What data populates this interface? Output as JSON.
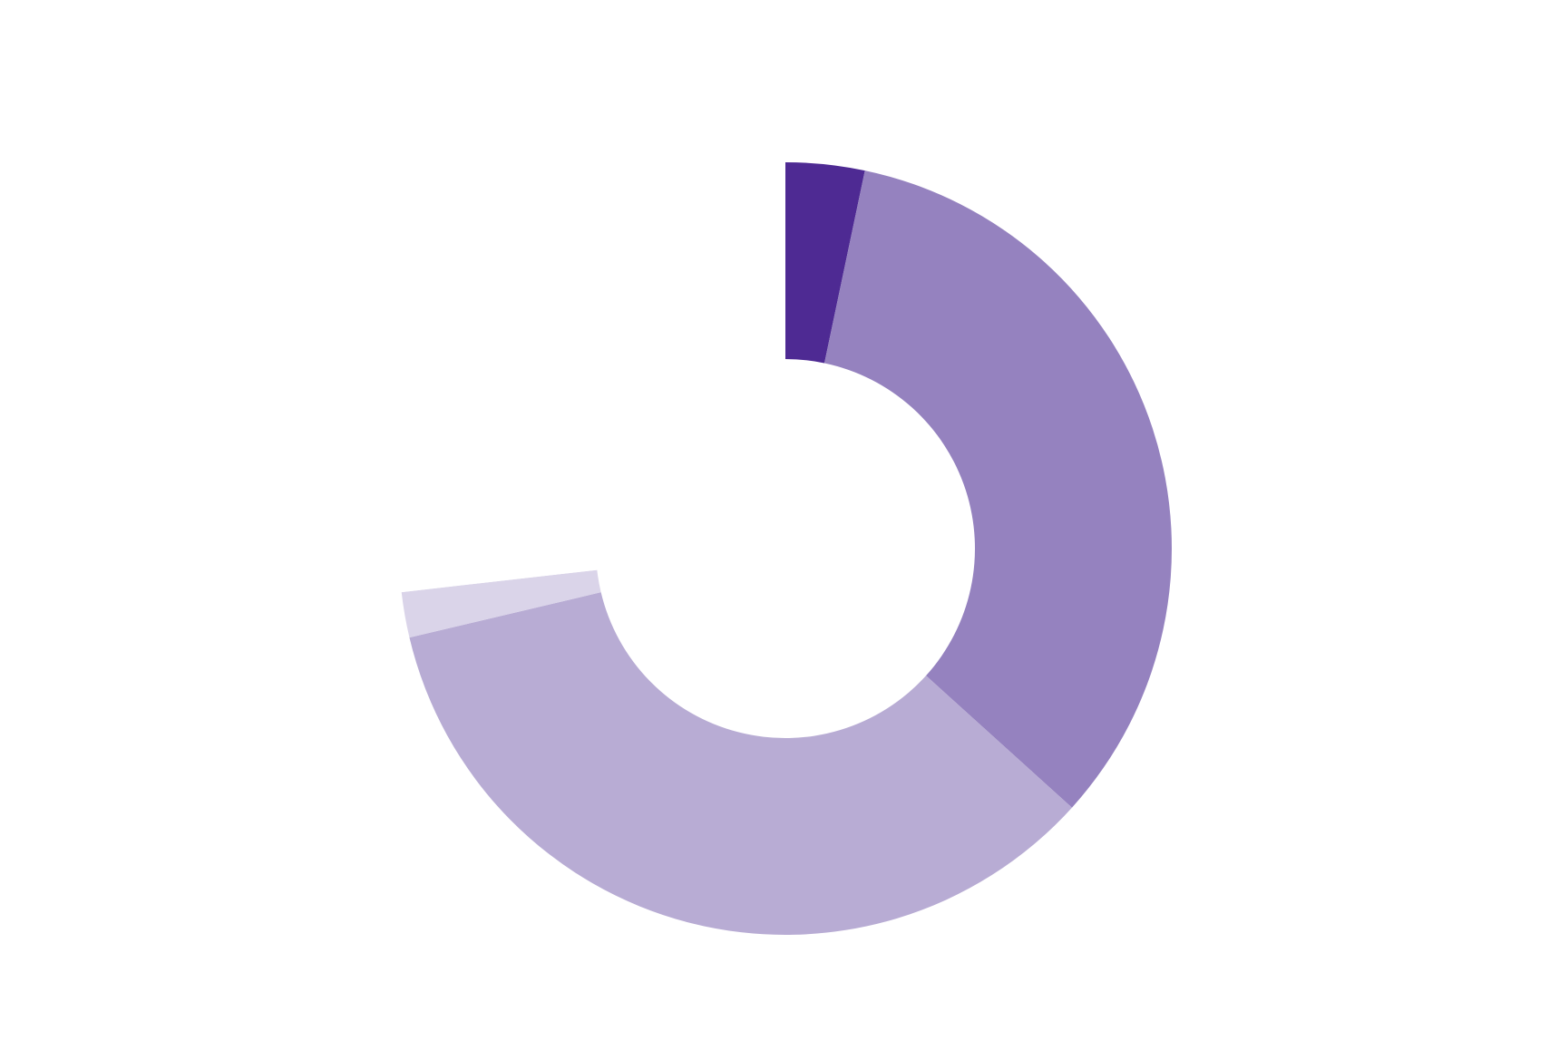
{
  "chart_data": {
    "type": "donut",
    "categories": [
      null,
      null,
      null,
      null,
      null
    ],
    "values": [
      3.3,
      33.4,
      34.6,
      1.9,
      26.8
    ],
    "colors": [
      "#4e2a93",
      "#9582bf",
      "#b8acd4",
      "#dad4e9",
      "#ffffff"
    ]
  }
}
